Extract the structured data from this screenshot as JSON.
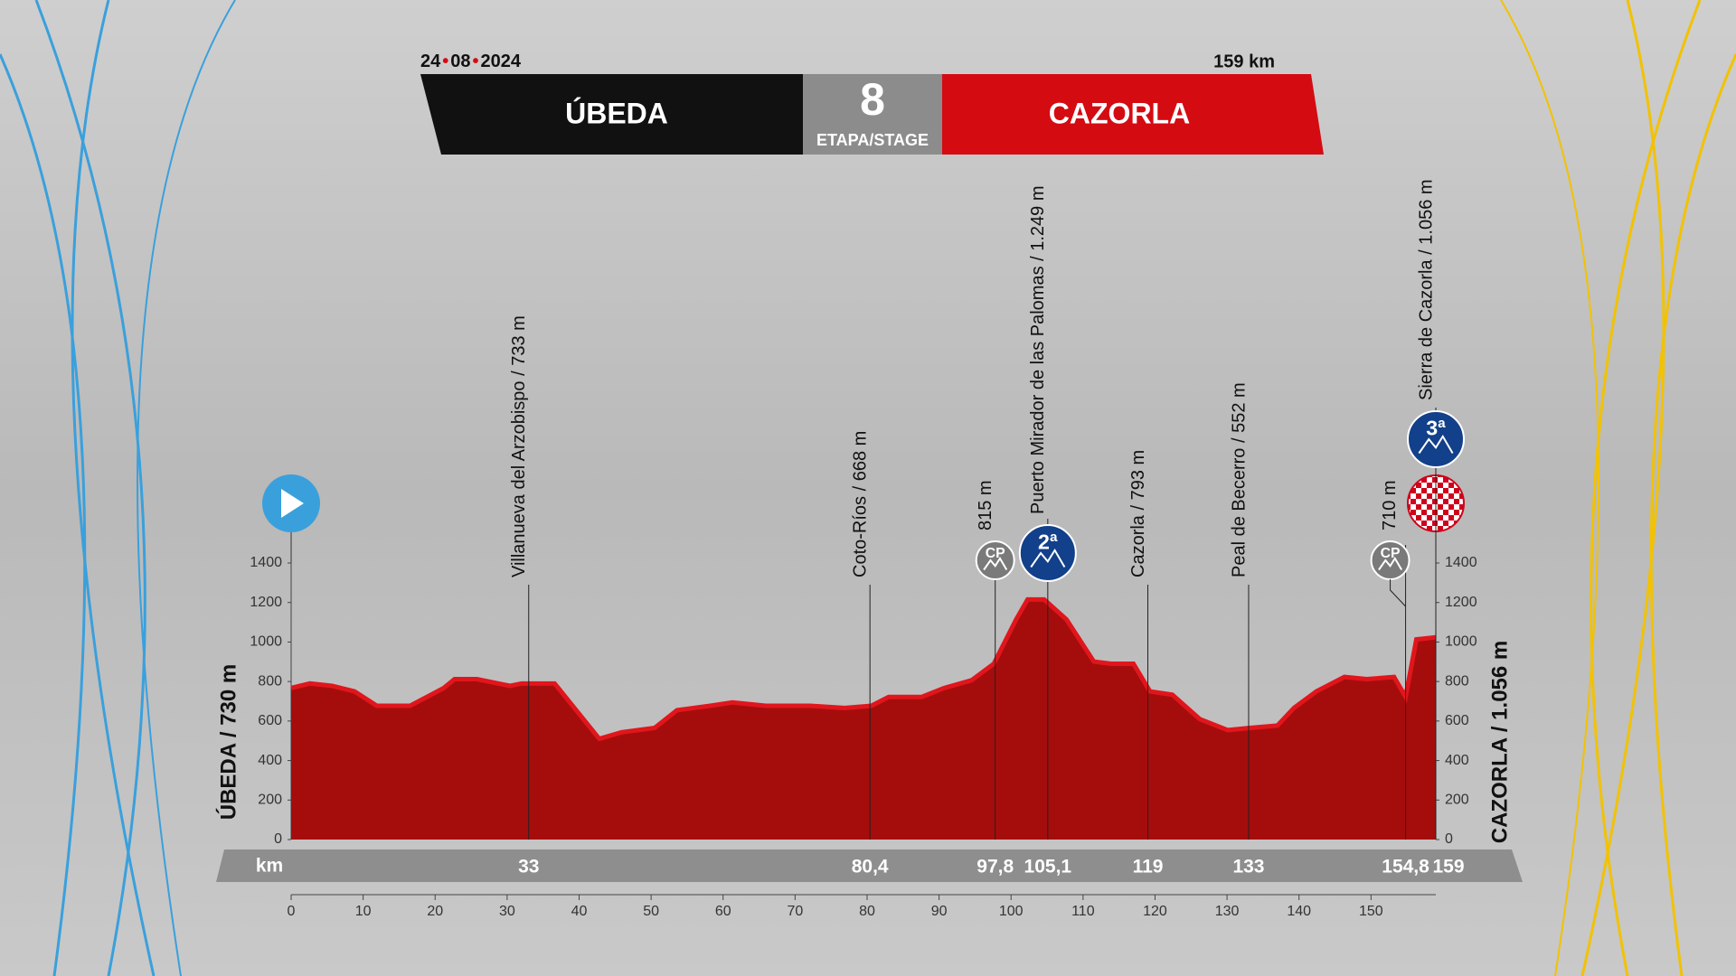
{
  "header": {
    "date": [
      "24",
      "08",
      "2024"
    ],
    "distance": "159 km",
    "start": "ÚBEDA",
    "finish": "CAZORLA",
    "stage_number": "8",
    "stage_label": "ETAPA/STAGE"
  },
  "chart_data": {
    "type": "area",
    "x": [
      0,
      2.6,
      5.7,
      8.8,
      11.9,
      16.5,
      21.2,
      22.7,
      25.8,
      30.4,
      32,
      36.6,
      42.8,
      45.9,
      50.5,
      53.6,
      58.2,
      61.3,
      65.9,
      72.1,
      76.8,
      80.6,
      83,
      87.6,
      90.7,
      94.5,
      97.6,
      100.7,
      102.3,
      104.6,
      107.7,
      111.5,
      113.9,
      117,
      119.3,
      122.4,
      126.2,
      130.1,
      133.2,
      137,
      139.3,
      142.4,
      146.3,
      149.4,
      153.2,
      154.8,
      156.3,
      159
    ],
    "values": [
      767,
      790,
      778,
      750,
      677,
      677,
      767,
      812,
      812,
      778,
      790,
      790,
      510,
      543,
      565,
      655,
      677,
      694,
      677,
      677,
      666,
      677,
      722,
      722,
      767,
      806,
      890,
      1114,
      1215,
      1215,
      1114,
      901,
      890,
      890,
      750,
      733,
      610,
      554,
      565,
      577,
      666,
      750,
      823,
      812,
      823,
      722,
      1013,
      1024
    ],
    "color": "#a50d0d",
    "xlim": [
      0,
      159
    ],
    "ylim": [
      0,
      1400
    ],
    "xticks": [
      0,
      10,
      20,
      30,
      40,
      50,
      60,
      70,
      80,
      90,
      100,
      110,
      120,
      130,
      140,
      150
    ],
    "yticks": [
      0,
      200,
      400,
      600,
      800,
      1000,
      1200,
      1400
    ],
    "ylabel": "ÚBEDA / 730 m",
    "y2label": "CAZORLA / 1.056 m",
    "km_label": "km",
    "waypoints": [
      {
        "km": {
          "value": 33,
          "label": "33"
        },
        "label": "Villanueva del Arzobispo / 733 m"
      },
      {
        "km": {
          "value": 80.4,
          "label": "80,4"
        },
        "label": "Coto-Ríos / 668 m"
      },
      {
        "km": {
          "value": 97.8,
          "label": "97,8"
        },
        "label": "815 m",
        "icon": "CP"
      },
      {
        "km": {
          "value": 105.1,
          "label": "105,1"
        },
        "label": "Puerto Mirador de las Palomas / 1.249 m",
        "icon": "2ª"
      },
      {
        "km": {
          "value": 119,
          "label": "119"
        },
        "label": "Cazorla / 793 m"
      },
      {
        "km": {
          "value": 133,
          "label": "133"
        },
        "label": "Peal de Becerro / 552 m"
      },
      {
        "km": {
          "value": 154.8,
          "label": "154,8"
        },
        "label": "710 m",
        "icon": "CP"
      },
      {
        "km": {
          "value": 159,
          "label": "159"
        },
        "label": "Sierra de Cazorla / 1.056 m",
        "icon": "3ª"
      }
    ]
  }
}
